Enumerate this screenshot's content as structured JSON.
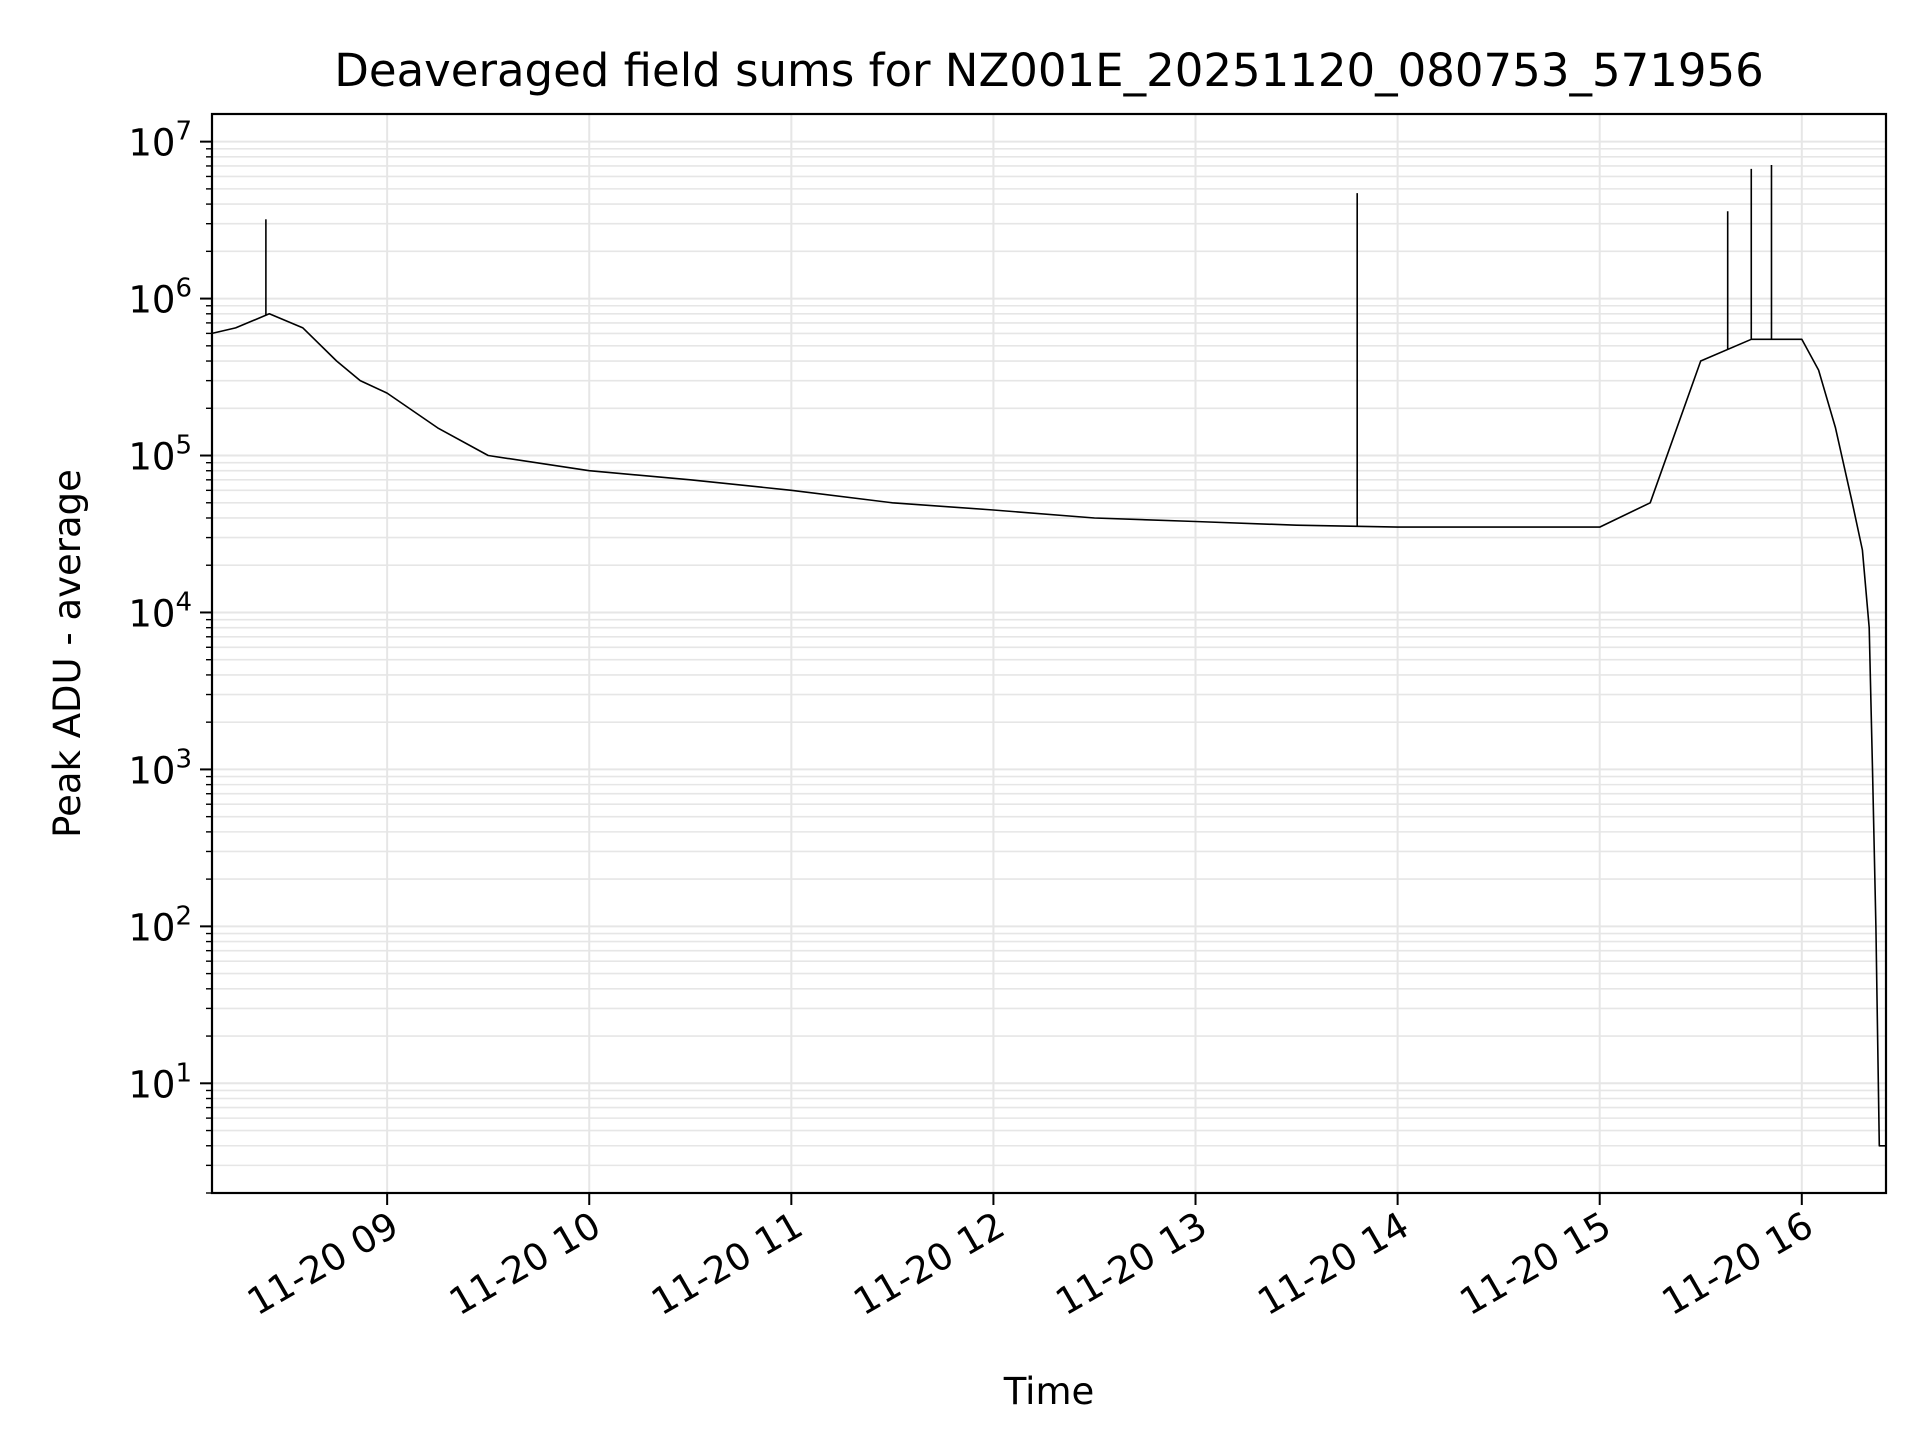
{
  "chart_data": {
    "type": "line",
    "title": "Deaveraged field sums for NZ001E_20251120_080753_571956",
    "xlabel": "Time",
    "ylabel": "Peak ADU - average",
    "y_scale": "log",
    "ylim": [
      2,
      15000000
    ],
    "xlim": [
      "11-20 08:08",
      "11-20 16:25"
    ],
    "grid": true,
    "line_color": "#000000",
    "grid_color": "#e6e6e6",
    "x_tick_labels": [
      "11-20 09",
      "11-20 10",
      "11-20 11",
      "11-20 12",
      "11-20 13",
      "11-20 14",
      "11-20 15",
      "11-20 16"
    ],
    "x_tick_hours": [
      9,
      10,
      11,
      12,
      13,
      14,
      15,
      16
    ],
    "y_tick_exponents": [
      1,
      2,
      3,
      4,
      5,
      6,
      7
    ],
    "y_tick_base": "10",
    "series": [
      {
        "x": [
          "11-20 08:08",
          "11-20 08:15",
          "11-20 08:25",
          "11-20 08:35",
          "11-20 08:45",
          "11-20 08:52",
          "11-20 09:00",
          "11-20 09:15",
          "11-20 09:30",
          "11-20 10:00",
          "11-20 10:30",
          "11-20 11:00",
          "11-20 11:30",
          "11-20 12:00",
          "11-20 12:30",
          "11-20 13:00",
          "11-20 13:30",
          "11-20 14:00",
          "11-20 14:30",
          "11-20 15:00",
          "11-20 15:15",
          "11-20 15:30",
          "11-20 15:45",
          "11-20 16:00",
          "11-20 16:05",
          "11-20 16:10",
          "11-20 16:15",
          "11-20 16:18",
          "11-20 16:20",
          "11-20 16:21",
          "11-20 16:22",
          "11-20 16:23",
          "11-20 16:25"
        ],
        "y": [
          600000,
          650000,
          800000,
          650000,
          400000,
          300000,
          250000,
          150000,
          100000,
          80000,
          70000,
          60000,
          50000,
          45000,
          40000,
          38000,
          36000,
          35000,
          35000,
          35000,
          50000,
          400000,
          550000,
          550000,
          350000,
          150000,
          50000,
          25000,
          8000,
          1000,
          100,
          4,
          4
        ]
      }
    ],
    "annotations_spikes": [
      {
        "x": "11-20 08:24",
        "y": 3200000
      },
      {
        "x": "11-20 13:48",
        "y": 4700000
      },
      {
        "x": "11-20 15:38",
        "y": 3600000
      },
      {
        "x": "11-20 15:45",
        "y": 6700000
      },
      {
        "x": "11-20 15:51",
        "y": 7100000
      }
    ]
  }
}
